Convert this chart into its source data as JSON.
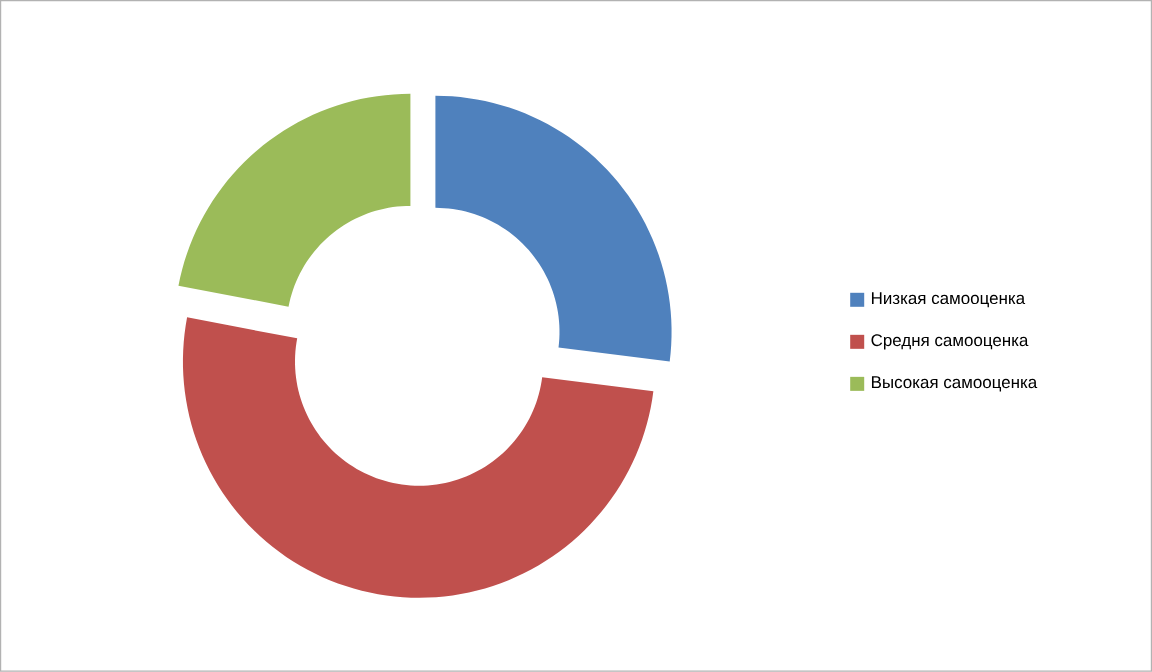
{
  "chart_data": {
    "type": "donut",
    "categories": [
      "Низкая самооценка",
      "Средня  самооценка",
      "Высокая самооценка"
    ],
    "values": [
      27,
      51,
      22
    ],
    "colors": [
      "#4f81bd",
      "#c0504d",
      "#9bbb59"
    ],
    "legend": "right"
  }
}
